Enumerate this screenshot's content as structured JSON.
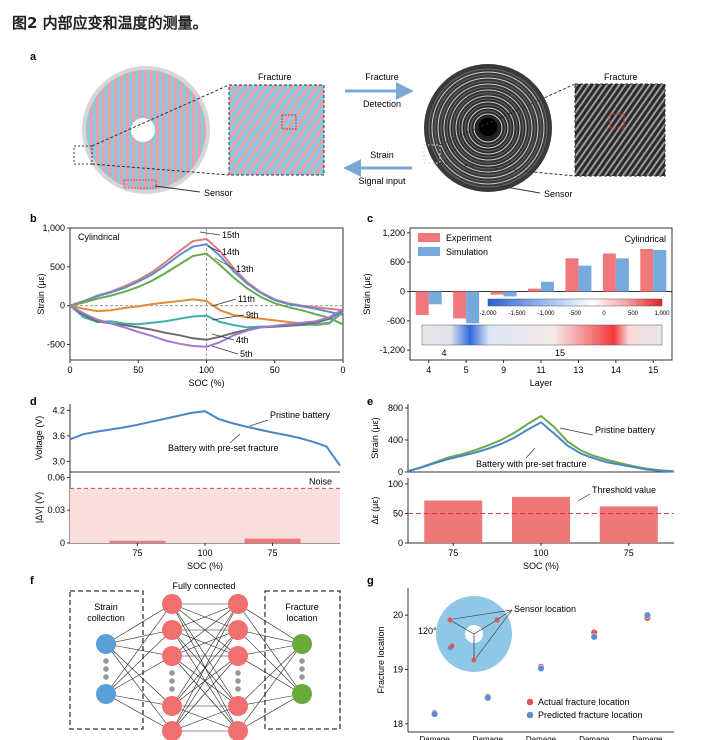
{
  "figure_title": "图2 内部应变和温度的测量。",
  "panel_letters": [
    "a",
    "b",
    "c",
    "d",
    "e",
    "f",
    "g"
  ],
  "panel_a": {
    "fracture_label_left": "Fracture",
    "fracture_label_right": "Fracture",
    "arrow_top_line1": "Fracture",
    "arrow_top_line2": "Detection",
    "arrow_bottom_line1": "Strain",
    "arrow_bottom_line2": "Signal input",
    "sensor_label_left": "Sensor",
    "sensor_label_right": "Sensor",
    "colors": {
      "stripe_a": "#f59aa6",
      "stripe_b": "#7fcfe3",
      "arrow": "#7ba7d6"
    }
  },
  "chart_data": [
    {
      "id": "b",
      "type": "line",
      "annotation": "Cylindrical",
      "xlabel": "SOC (%)",
      "ylabel": "Strain (με)",
      "xticks": [
        "0",
        "50",
        "100",
        "50",
        "0"
      ],
      "yticks": [
        "-500",
        "0",
        "500",
        "1,000"
      ],
      "ylim": [
        -700,
        1000
      ],
      "x": [
        0,
        10,
        20,
        30,
        40,
        50,
        60,
        70,
        80,
        90,
        100,
        110,
        120,
        130,
        140,
        150,
        160,
        170,
        180,
        190,
        200
      ],
      "series": [
        {
          "name": "15th",
          "color": "#e07b7b",
          "values": [
            0,
            60,
            130,
            180,
            250,
            330,
            430,
            560,
            700,
            830,
            860,
            700,
            480,
            300,
            170,
            80,
            30,
            0,
            -20,
            -40,
            -60
          ]
        },
        {
          "name": "14th",
          "color": "#5b8fd0",
          "values": [
            0,
            55,
            120,
            170,
            230,
            310,
            400,
            520,
            650,
            760,
            790,
            640,
            440,
            280,
            160,
            70,
            20,
            -10,
            -40,
            -80,
            -120
          ]
        },
        {
          "name": "13th",
          "color": "#6aaa4a",
          "values": [
            0,
            40,
            90,
            130,
            180,
            240,
            320,
            420,
            530,
            640,
            670,
            520,
            360,
            220,
            110,
            30,
            -20,
            -60,
            -110,
            -160,
            -240
          ]
        },
        {
          "name": "11th",
          "color": "#e48a3c",
          "values": [
            0,
            -40,
            -70,
            -60,
            -30,
            -10,
            20,
            40,
            60,
            80,
            60,
            -60,
            -120,
            -150,
            -170,
            -190,
            -210,
            -230,
            -250,
            -230,
            -80
          ]
        },
        {
          "name": "9th",
          "color": "#3fb0a5",
          "values": [
            0,
            -150,
            -210,
            -200,
            -230,
            -240,
            -220,
            -200,
            -170,
            -140,
            -130,
            -210,
            -250,
            -280,
            -270,
            -270,
            -260,
            -250,
            -240,
            -220,
            -80
          ]
        },
        {
          "name": "4th",
          "color": "#6b6b6b",
          "values": [
            0,
            -120,
            -200,
            -230,
            -250,
            -280,
            -310,
            -350,
            -380,
            -420,
            -440,
            -400,
            -350,
            -310,
            -280,
            -270,
            -260,
            -240,
            -220,
            -170,
            -60
          ]
        },
        {
          "name": "5th",
          "color": "#a27ad0",
          "values": [
            0,
            -100,
            -180,
            -230,
            -280,
            -340,
            -390,
            -450,
            -490,
            -520,
            -530,
            -470,
            -380,
            -320,
            -280,
            -260,
            -240,
            -220,
            -200,
            -150,
            -50
          ]
        }
      ]
    },
    {
      "id": "c",
      "type": "bar",
      "annotation": "Cylindrical",
      "xlabel": "Layer",
      "ylabel": "Strain (με)",
      "categories": [
        "4",
        "5",
        "9",
        "11",
        "13",
        "14",
        "15"
      ],
      "yticks": [
        "-1,200",
        "-600",
        "0",
        "600",
        "1,200"
      ],
      "ylim": [
        -1400,
        1300
      ],
      "series": [
        {
          "name": "Experiment",
          "color": "#f0787c",
          "values": [
            -480,
            -550,
            -60,
            60,
            680,
            780,
            870
          ]
        },
        {
          "name": "Simulation",
          "color": "#78a9dd",
          "values": [
            -260,
            -650,
            -100,
            200,
            530,
            680,
            850
          ]
        }
      ],
      "colorbar_ticks": [
        "-2,000",
        "-1,500",
        "-1,000",
        "-500",
        "0",
        "500",
        "1,000"
      ],
      "inset_labels": [
        "4",
        "15"
      ]
    },
    {
      "id": "d",
      "type": "line",
      "xlabel": "SOC (%)",
      "xticks": [
        "75",
        "100",
        "75"
      ],
      "top": {
        "ylabel": "Voltage (V)",
        "yticks": [
          "3.0",
          "3.6",
          "4.2"
        ],
        "ylim": [
          2.75,
          4.35
        ],
        "legend": [
          "Pristine battery",
          "Battery with pre-set fracture"
        ],
        "x": [
          0,
          10,
          20,
          30,
          40,
          50,
          60,
          70,
          80,
          90,
          100,
          110,
          120,
          130,
          140,
          150,
          160,
          170,
          180,
          190,
          200
        ],
        "values": [
          3.52,
          3.64,
          3.7,
          3.75,
          3.8,
          3.86,
          3.93,
          4.0,
          4.07,
          4.14,
          4.18,
          4.0,
          3.9,
          3.82,
          3.75,
          3.68,
          3.62,
          3.55,
          3.46,
          3.35,
          2.9
        ],
        "color": "#4a86c8"
      },
      "bottom": {
        "ylabel": "|ΔV| (V)",
        "yticks": [
          "0",
          "0.03",
          "0.06"
        ],
        "ylim": [
          0,
          0.065
        ],
        "noise_label": "Noise",
        "noise_level": 0.05,
        "bars": [
          {
            "x": 0.25,
            "value": 0.002
          },
          {
            "x": 0.75,
            "value": 0.004
          }
        ],
        "colors": {
          "band": "#fbdede",
          "bar": "#f07777",
          "line": "#d44"
        }
      }
    },
    {
      "id": "e",
      "type": "line",
      "xlabel": "SOC (%)",
      "xticks": [
        "75",
        "100",
        "75"
      ],
      "top": {
        "ylabel": "Strain (με)",
        "yticks": [
          "0",
          "400",
          "800"
        ],
        "ylim": [
          0,
          850
        ],
        "x": [
          0,
          10,
          20,
          30,
          40,
          50,
          60,
          70,
          80,
          90,
          100,
          110,
          120,
          130,
          140,
          150,
          160,
          170,
          180,
          190,
          200
        ],
        "series": [
          {
            "name": "Pristine battery",
            "color": "#6aaa4a",
            "values": [
              10,
              60,
              120,
              180,
              220,
              270,
              330,
              400,
              490,
              600,
              700,
              560,
              380,
              270,
              200,
              150,
              110,
              70,
              40,
              20,
              10
            ]
          },
          {
            "name": "Battery with pre-set fracture",
            "color": "#4a86c8",
            "values": [
              10,
              55,
              110,
              160,
              200,
              240,
              290,
              350,
              430,
              530,
              620,
              480,
              330,
              230,
              170,
              120,
              90,
              60,
              30,
              15,
              5
            ]
          }
        ]
      },
      "bottom": {
        "ylabel": "Δε (με)",
        "yticks": [
          "0",
          "50",
          "100"
        ],
        "ylim": [
          0,
          110
        ],
        "threshold_label": "Threshold value",
        "threshold": 50,
        "categories": [
          "75",
          "100",
          "75"
        ],
        "values": [
          72,
          78,
          62
        ],
        "colors": {
          "bar": "#f07777",
          "line": "#d44"
        }
      }
    },
    {
      "id": "g",
      "type": "scatter",
      "ylabel": "Fracture location",
      "xticks": [
        "Damage",
        "Damage",
        "Damage",
        "Damage",
        "Damage"
      ],
      "yticks": [
        "18",
        "19",
        "20"
      ],
      "ylim": [
        17.85,
        20.5
      ],
      "x": [
        1,
        2,
        3,
        4,
        5
      ],
      "series": [
        {
          "name": "Actual fracture location",
          "color": "#e05555",
          "values": [
            18.2,
            18.5,
            19.05,
            19.68,
            19.95
          ]
        },
        {
          "name": "Predicted fracture location",
          "color": "#5a8fd0",
          "values": [
            18.18,
            18.48,
            19.02,
            19.6,
            20.0
          ]
        }
      ],
      "inset": {
        "angle_label": "120°",
        "sensor_label": "Sensor location"
      }
    }
  ],
  "panel_f": {
    "left_box": [
      "Strain",
      "collection"
    ],
    "header": "Fully connected",
    "right_box": [
      "Fracture",
      "location"
    ],
    "colors": {
      "input": "#5a9fd6",
      "hidden": "#f07070",
      "output": "#6aaa3a",
      "dots": "#999999"
    }
  }
}
